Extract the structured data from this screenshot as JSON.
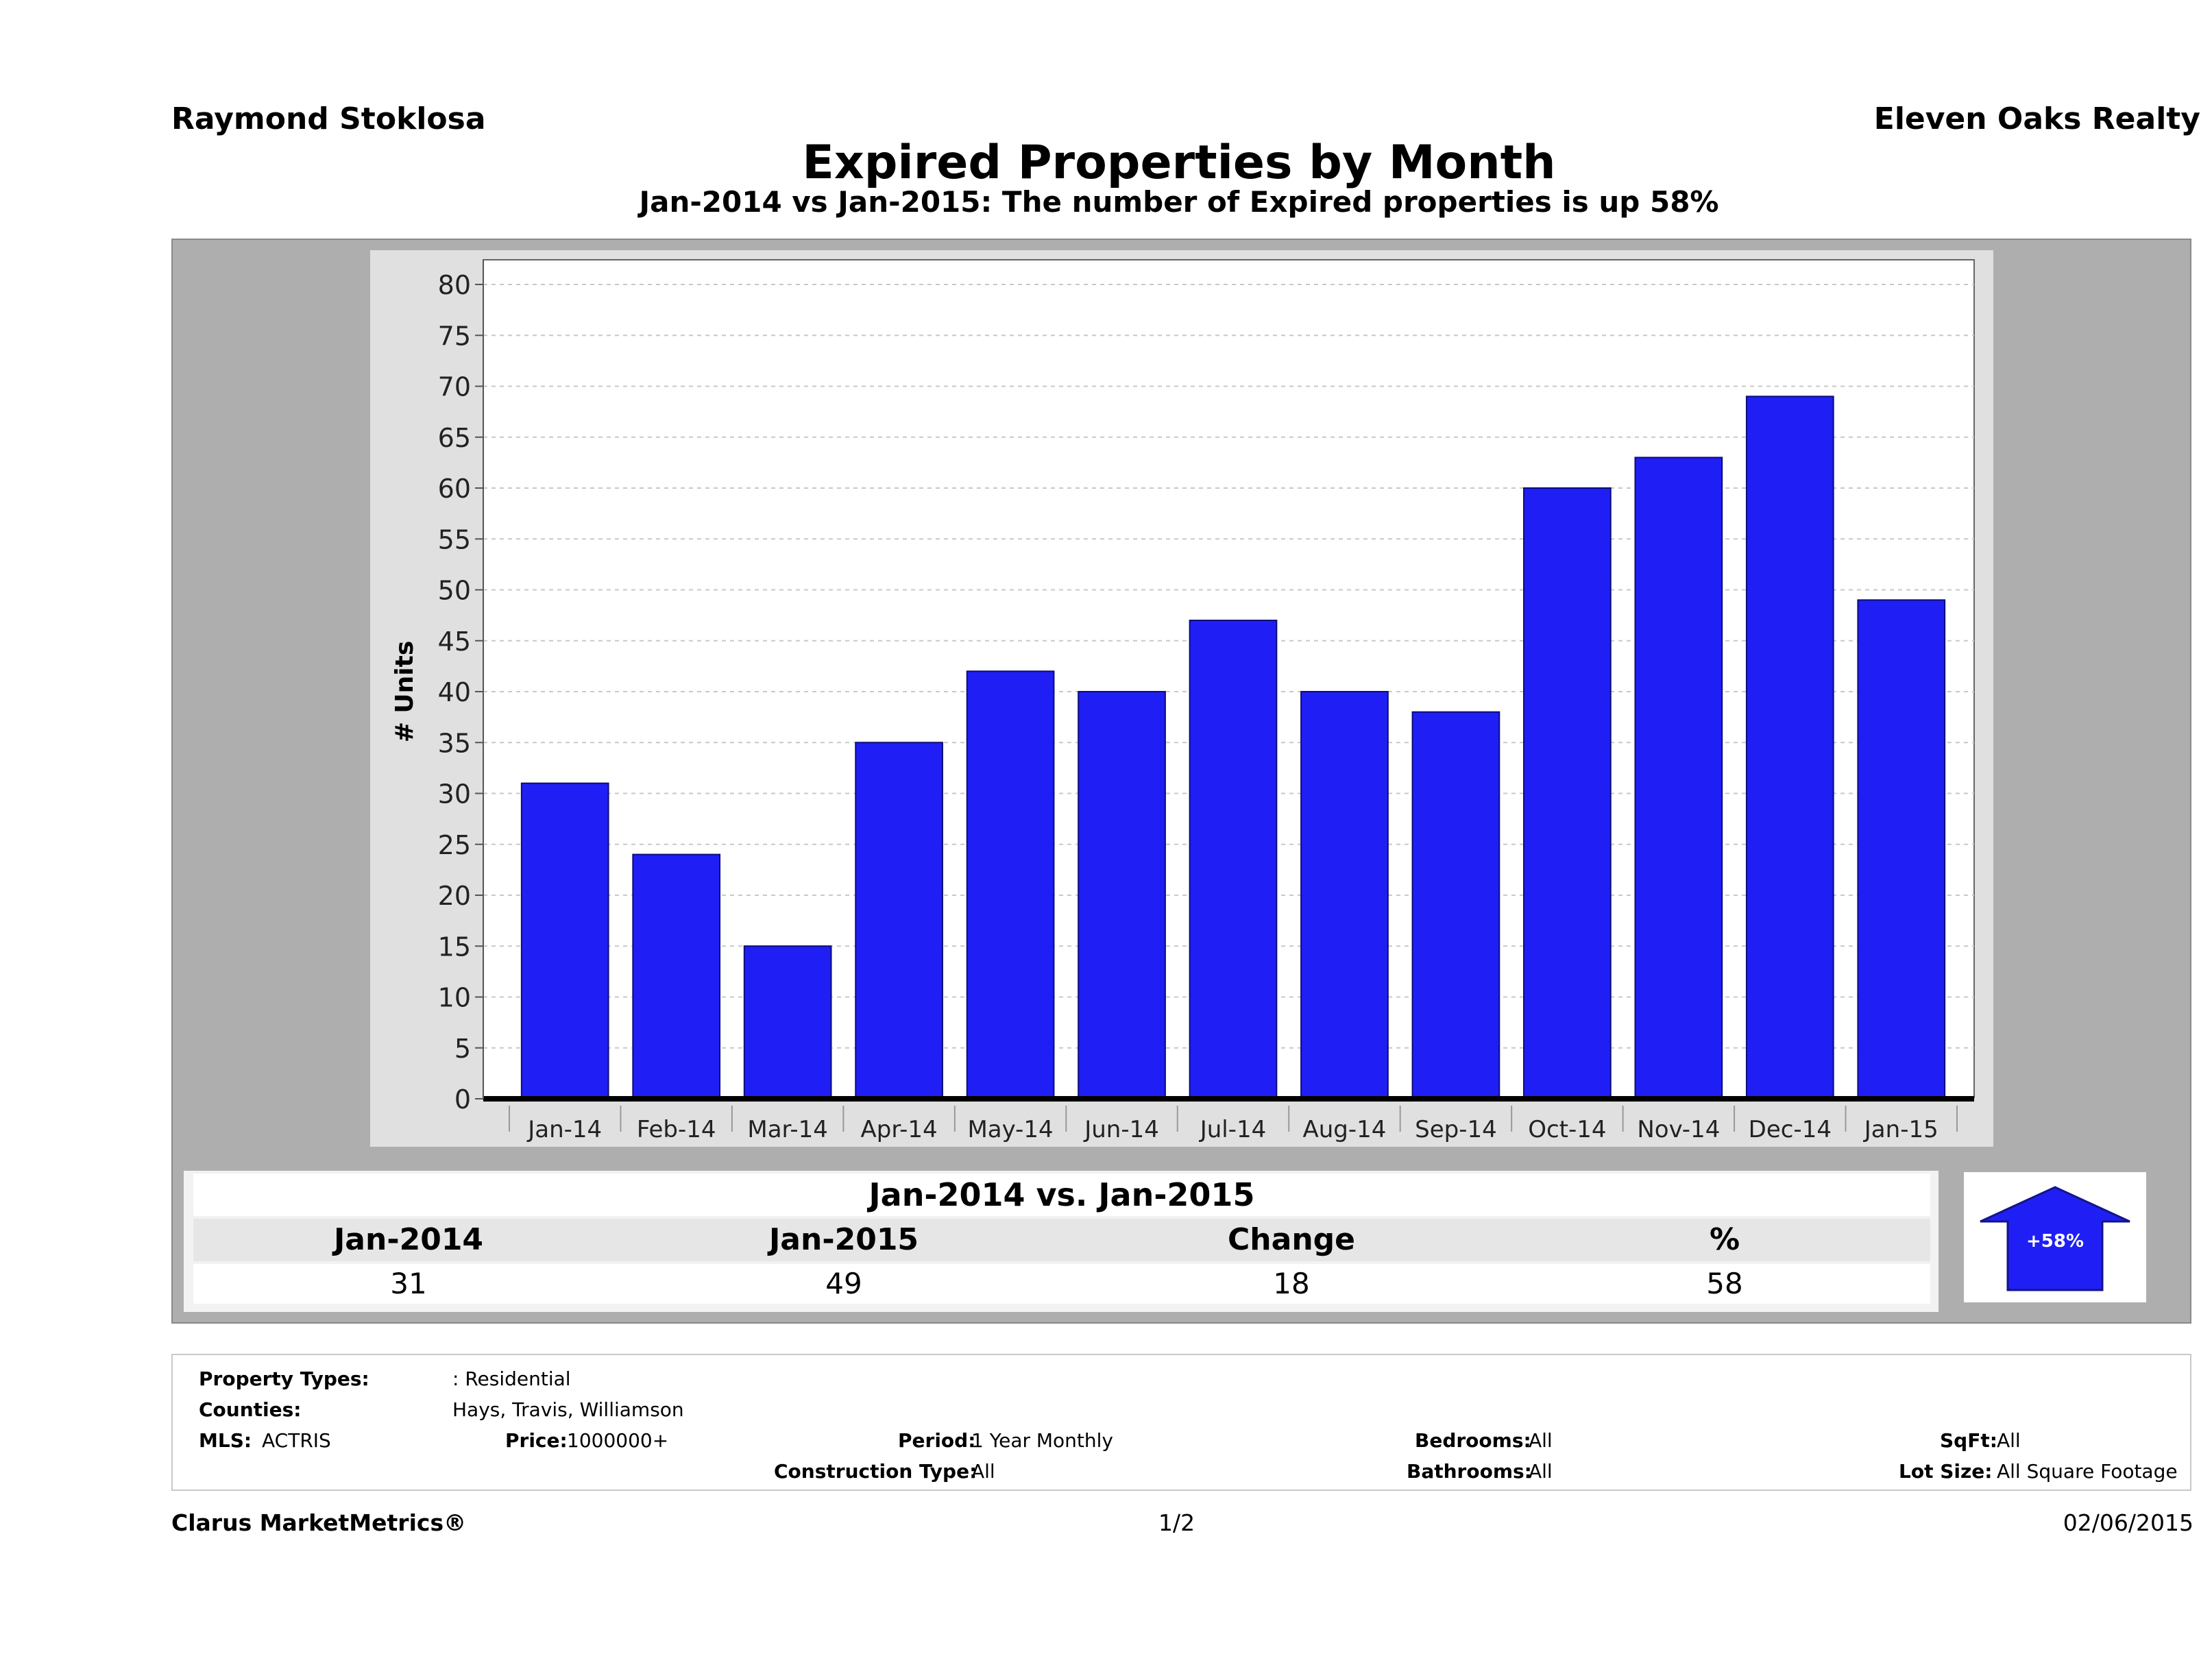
{
  "header": {
    "agent": "Raymond Stoklosa",
    "company": "Eleven Oaks Realty"
  },
  "colors": {
    "bar": "#1f1ff5",
    "panel": "#aeaeae",
    "plot_bg": "#ffffff"
  },
  "chart_data": {
    "type": "bar",
    "title": "Expired Properties by Month",
    "subtitle": "Jan-2014 vs Jan-2015: The number of Expired  properties is up 58%",
    "ylabel": "# Units",
    "xlabel": "",
    "ylim": [
      0,
      80
    ],
    "yticks": [
      0,
      5,
      10,
      15,
      20,
      25,
      30,
      35,
      40,
      45,
      50,
      55,
      60,
      65,
      70,
      75,
      80
    ],
    "grid": true,
    "categories": [
      "Jan-14",
      "Feb-14",
      "Mar-14",
      "Apr-14",
      "May-14",
      "Jun-14",
      "Jul-14",
      "Aug-14",
      "Sep-14",
      "Oct-14",
      "Nov-14",
      "Dec-14",
      "Jan-15"
    ],
    "values": [
      31,
      24,
      15,
      35,
      42,
      40,
      47,
      40,
      38,
      60,
      63,
      69,
      49
    ]
  },
  "summary": {
    "title": "Jan-2014 vs. Jan-2015",
    "headers": [
      "Jan-2014",
      "Jan-2015",
      "Change",
      "%"
    ],
    "values": [
      "31",
      "49",
      "18",
      "58"
    ],
    "badge": "+58%"
  },
  "info": {
    "property_types_label": "Property Types:",
    "property_types_value": ": Residential",
    "counties_label": "Counties:",
    "counties_value": "Hays, Travis, Williamson",
    "mls_label": "MLS:",
    "mls_value": "ACTRIS",
    "price_label": "Price:",
    "price_value": "1000000+",
    "period_label": "Period:",
    "period_value": "1 Year Monthly",
    "construction_label": "Construction Type:",
    "construction_value": "All",
    "bedrooms_label": "Bedrooms:",
    "bedrooms_value": "All",
    "bathrooms_label": "Bathrooms:",
    "bathrooms_value": "All",
    "sqft_label": "SqFt:",
    "sqft_value": "All",
    "lotsize_label": "Lot Size:",
    "lotsize_value": "All Square Footage"
  },
  "footer": {
    "brand": "Clarus MarketMetrics®",
    "page": "1/2",
    "date": "02/06/2015"
  }
}
